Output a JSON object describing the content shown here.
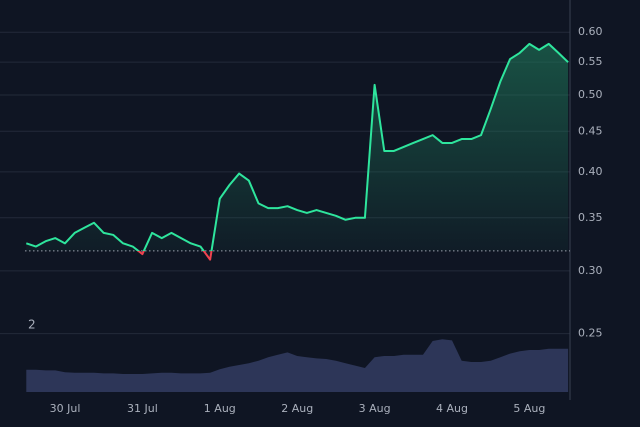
{
  "chart_data": {
    "type": "line",
    "watermark": "2",
    "categories": [
      null,
      null,
      null,
      null,
      "30 Jul",
      null,
      null,
      null,
      null,
      null,
      null,
      null,
      "31 Jul",
      null,
      null,
      null,
      null,
      null,
      null,
      null,
      "1 Aug",
      null,
      null,
      null,
      null,
      null,
      null,
      null,
      "2 Aug",
      null,
      null,
      null,
      null,
      null,
      null,
      null,
      "3 Aug",
      null,
      null,
      null,
      null,
      null,
      null,
      null,
      "4 Aug",
      null,
      null,
      null,
      null,
      null,
      null,
      null,
      "5 Aug",
      null,
      null,
      null,
      null
    ],
    "series": [
      {
        "color": "#2ee59d",
        "values": [
          0.325,
          0.322,
          0.327,
          0.33,
          0.325,
          0.335,
          0.34,
          0.345,
          0.335,
          0.333,
          0.325,
          0.322,
          0.315,
          0.335,
          0.33,
          0.335,
          0.33,
          0.325,
          0.322,
          0.31,
          0.37,
          0.385,
          0.398,
          0.39,
          0.365,
          0.36,
          0.36,
          0.362,
          0.358,
          0.355,
          0.358,
          0.355,
          0.352,
          0.348,
          0.35,
          0.35,
          0.515,
          0.425,
          0.425,
          0.43,
          0.435,
          0.44,
          0.445,
          0.435,
          0.435,
          0.44,
          0.44,
          0.445,
          0.48,
          0.52,
          0.555,
          0.565,
          0.58,
          0.57,
          0.58,
          0.565,
          0.55
        ]
      },
      {
        "color": "#2d3658",
        "values": [
          37,
          37,
          36,
          36,
          33,
          32,
          32,
          32,
          31,
          31,
          30,
          30,
          30,
          31,
          32,
          32,
          31,
          31,
          31,
          32,
          38,
          42,
          45,
          48,
          52,
          58,
          62,
          66,
          60,
          58,
          56,
          55,
          52,
          48,
          44,
          40,
          58,
          60,
          60,
          62,
          62,
          62,
          85,
          88,
          86,
          52,
          50,
          50,
          52,
          58,
          64,
          68,
          70,
          70,
          72,
          72,
          72
        ],
        "axis": "y2"
      }
    ],
    "below_color": "#f0434f",
    "baseline": 0.318,
    "log_scale": true,
    "ylim": [
      0.205,
      0.64
    ],
    "yticks": [
      {
        "value": 0.25,
        "label": "0.25"
      },
      {
        "value": 0.3,
        "label": "0.30"
      },
      {
        "value": 0.35,
        "label": "0.35"
      },
      {
        "value": 0.4,
        "label": "0.40"
      },
      {
        "value": 0.45,
        "label": "0.45"
      },
      {
        "value": 0.5,
        "label": "0.50"
      },
      {
        "value": 0.55,
        "label": "0.55"
      },
      {
        "value": 0.6,
        "label": "0.60"
      }
    ],
    "y2lim": [
      0,
      100
    ],
    "grid": true
  }
}
